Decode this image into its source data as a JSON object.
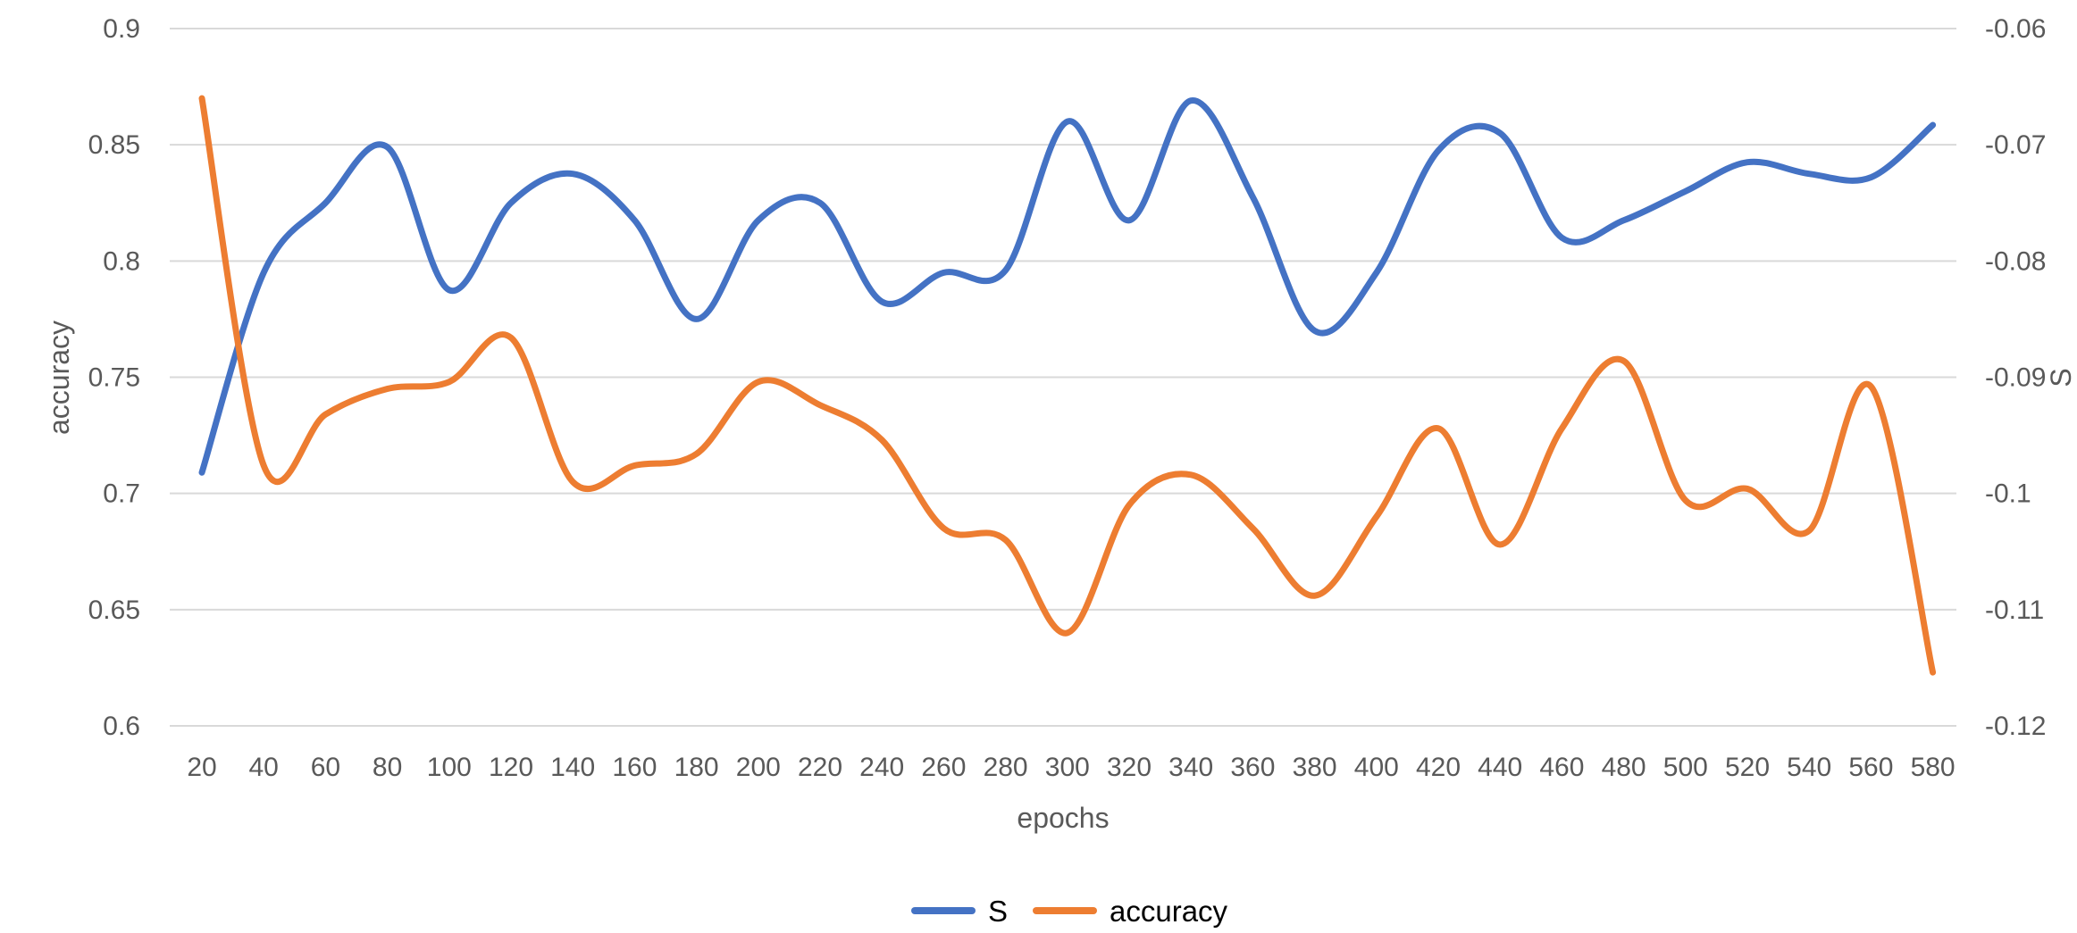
{
  "chart_data": {
    "type": "line",
    "title": "",
    "xlabel": "epochs",
    "ylabel": "accuracy",
    "y2label": "S",
    "categories": [
      "20",
      "40",
      "60",
      "80",
      "100",
      "120",
      "140",
      "160",
      "180",
      "200",
      "220",
      "240",
      "260",
      "280",
      "300",
      "320",
      "340",
      "360",
      "380",
      "400",
      "420",
      "440",
      "460",
      "480",
      "500",
      "520",
      "540",
      "560",
      "580"
    ],
    "ylim": [
      0.6,
      0.9
    ],
    "y_ticks": [
      "0.6",
      "0.65",
      "0.7",
      "0.75",
      "0.8",
      "0.85",
      "0.9"
    ],
    "y2lim": [
      -0.12,
      -0.06
    ],
    "y2_ticks": [
      "-0.12",
      "-0.11",
      "-0.1",
      "-0.09",
      "-0.08",
      "-0.07",
      "-0.06"
    ],
    "smooth": true,
    "grid": true,
    "legend": "bottom",
    "series": [
      {
        "name": "S",
        "axis": "right",
        "color": "#4472C4",
        "values": [
          -0.0982,
          -0.081,
          -0.075,
          -0.0702,
          -0.0825,
          -0.075,
          -0.0725,
          -0.0765,
          -0.085,
          -0.0765,
          -0.075,
          -0.0835,
          -0.081,
          -0.0808,
          -0.068,
          -0.0765,
          -0.0662,
          -0.0745,
          -0.086,
          -0.081,
          -0.0705,
          -0.069,
          -0.078,
          -0.0765,
          -0.074,
          -0.0715,
          -0.0725,
          -0.0728,
          -0.0683
        ]
      },
      {
        "name": "accuracy",
        "axis": "left",
        "color": "#ED7D31",
        "values": [
          0.87,
          0.712,
          0.734,
          0.745,
          0.748,
          0.767,
          0.705,
          0.712,
          0.717,
          0.748,
          0.738,
          0.723,
          0.685,
          0.68,
          0.64,
          0.695,
          0.708,
          0.685,
          0.656,
          0.69,
          0.728,
          0.678,
          0.728,
          0.757,
          0.697,
          0.702,
          0.684,
          0.746,
          0.623
        ]
      }
    ]
  }
}
